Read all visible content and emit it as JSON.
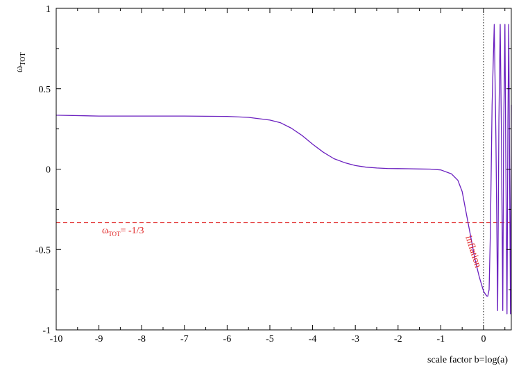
{
  "chart_data": {
    "type": "line",
    "title": "",
    "xlabel": "scale factor b=log(a)",
    "ylabel": "ω",
    "ylabel_sub": "TOT",
    "xlim": [
      -10,
      0.65
    ],
    "ylim": [
      -1,
      1
    ],
    "grid": false,
    "x_ticks": [
      -10,
      -9,
      -8,
      -7,
      -6,
      -5,
      -4,
      -3,
      -2,
      -1,
      0
    ],
    "x_tick_labels": [
      "-10",
      "-9",
      "-8",
      "-7",
      "-6",
      "-5",
      "-4",
      "-3",
      "-2",
      "-1",
      "0"
    ],
    "y_ticks": [
      -1,
      -0.5,
      0,
      0.5,
      1
    ],
    "y_tick_labels": [
      "-1",
      "-0.5",
      "0",
      "0.5",
      "1"
    ],
    "series": [
      {
        "color": "#6a1fbf",
        "x": [
          -10,
          -9,
          -8,
          -7,
          -6,
          -5.5,
          -5,
          -4.75,
          -4.5,
          -4.25,
          -4,
          -3.75,
          -3.5,
          -3.25,
          -3,
          -2.75,
          -2.5,
          -2.25,
          -2,
          -1.75,
          -1.5,
          -1.25,
          -1,
          -0.75,
          -0.6,
          -0.5,
          -0.4,
          -0.3,
          -0.2,
          -0.1,
          0,
          0.05,
          0.08,
          0.1,
          0.13,
          0.16,
          0.2,
          0.25,
          0.29,
          0.33,
          0.36,
          0.39,
          0.42,
          0.45,
          0.47,
          0.5,
          0.52,
          0.55,
          0.57,
          0.59,
          0.61,
          0.63,
          0.65
        ],
        "y": [
          0.335,
          0.33,
          0.33,
          0.33,
          0.328,
          0.322,
          0.305,
          0.288,
          0.255,
          0.21,
          0.155,
          0.105,
          0.065,
          0.04,
          0.022,
          0.012,
          0.007,
          0.004,
          0.003,
          0.002,
          0.001,
          0.0,
          -0.005,
          -0.03,
          -0.07,
          -0.14,
          -0.28,
          -0.42,
          -0.56,
          -0.67,
          -0.76,
          -0.78,
          -0.79,
          -0.79,
          -0.75,
          -0.4,
          0.4,
          0.9,
          0.2,
          -0.88,
          0.3,
          0.9,
          0.2,
          -0.88,
          0.2,
          0.9,
          0.1,
          -0.9,
          0.3,
          0.9,
          0.0,
          -0.9,
          0.4
        ]
      }
    ],
    "annotations": {
      "hline": {
        "y": -0.3333,
        "color": "#e02020",
        "style": "dashed",
        "label_main": "ω",
        "label_sub": "TOT",
        "label_rest": "= -1/3"
      },
      "vline": {
        "x": 0,
        "color": "#000000",
        "style": "dotted"
      },
      "rotated_label": {
        "text": "inflation",
        "color": "#e02020"
      }
    }
  }
}
